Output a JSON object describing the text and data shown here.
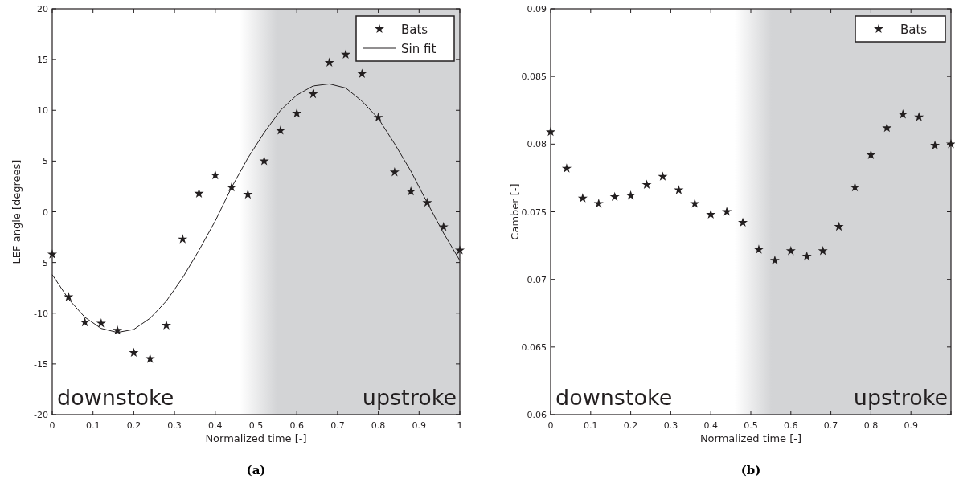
{
  "chart_data": [
    {
      "type": "scatter",
      "title": "(a)",
      "xlabel": "Normalized time [-]",
      "ylabel": "LEF angle [degrees]",
      "x": [
        0,
        0.04,
        0.08,
        0.12,
        0.16,
        0.2,
        0.24,
        0.28,
        0.32,
        0.36,
        0.4,
        0.44,
        0.48,
        0.52,
        0.56,
        0.6,
        0.64,
        0.68,
        0.72,
        0.76,
        0.8,
        0.84,
        0.88,
        0.92,
        0.96,
        1
      ],
      "series": [
        {
          "name": "Bats",
          "type": "scatter",
          "color": "#231f20",
          "marker": "star",
          "values": [
            -4.2,
            -8.4,
            -10.9,
            -11.0,
            -11.7,
            -13.9,
            -14.5,
            -11.2,
            -2.7,
            1.8,
            3.6,
            2.4,
            1.7,
            5.0,
            8.0,
            9.7,
            11.6,
            14.7,
            15.5,
            13.6,
            9.3,
            3.9,
            2.0,
            0.9,
            -1.5,
            -3.8
          ]
        },
        {
          "name": "Sin fit",
          "type": "line",
          "color": "#231f20",
          "line_style": "solid",
          "values": [
            -6.2,
            -8.6,
            -10.4,
            -11.5,
            -11.9,
            -11.6,
            -10.5,
            -8.8,
            -6.5,
            -3.8,
            -0.9,
            2.4,
            5.3,
            7.8,
            10.0,
            11.5,
            12.4,
            12.6,
            12.2,
            10.9,
            9.2,
            6.7,
            4.0,
            0.9,
            -2.1,
            -4.8
          ]
        }
      ],
      "xlim": [
        0,
        1
      ],
      "xticks": [
        0,
        0.1,
        0.2,
        0.3,
        0.4,
        0.5,
        0.6,
        0.7,
        0.8,
        0.9,
        1
      ],
      "ylim": [
        -20,
        20
      ],
      "yticks": [
        -20,
        -15,
        -10,
        -5,
        0,
        5,
        10,
        15,
        20
      ],
      "bands": [
        {
          "axis": "x",
          "from": 0.46,
          "to": 1,
          "label": "upstroke",
          "color": "#d3d4d6"
        }
      ],
      "annotations": [
        "downstoke"
      ],
      "legend": "top right",
      "grid": false
    },
    {
      "type": "scatter",
      "title": "(b)",
      "xlabel": "Normalized time [-]",
      "ylabel": "Camber [-]",
      "x": [
        0,
        0.04,
        0.08,
        0.12,
        0.16,
        0.2,
        0.24,
        0.28,
        0.32,
        0.36,
        0.4,
        0.44,
        0.48,
        0.52,
        0.56,
        0.6,
        0.64,
        0.68,
        0.72,
        0.76,
        0.8,
        0.84,
        0.88,
        0.92,
        0.96,
        1
      ],
      "series": [
        {
          "name": "Bats",
          "type": "scatter",
          "color": "#231f20",
          "marker": "star",
          "values": [
            0.0809,
            0.0782,
            0.076,
            0.0756,
            0.0761,
            0.0762,
            0.077,
            0.0776,
            0.0766,
            0.0756,
            0.0748,
            0.075,
            0.0742,
            0.0722,
            0.0714,
            0.0721,
            0.0717,
            0.0721,
            0.0739,
            0.0768,
            0.0792,
            0.0812,
            0.0822,
            0.082,
            0.0799,
            0.08
          ]
        }
      ],
      "xlim": [
        0,
        1
      ],
      "xticks": [
        0,
        0.1,
        0.2,
        0.3,
        0.4,
        0.5,
        0.6,
        0.7,
        0.8,
        0.9,
        {
          "value": 1,
          "label": null
        }
      ],
      "ylim": [
        0.06,
        0.09
      ],
      "yticks": [
        0.06,
        0.065,
        0.07,
        0.075,
        0.08,
        0.085,
        0.09
      ],
      "bands": [
        {
          "axis": "x",
          "from": 0.46,
          "to": 1,
          "label": "upstroke",
          "color": "#d3d4d6"
        }
      ],
      "annotations": [
        "downstoke"
      ],
      "legend": "top right",
      "grid": false
    }
  ]
}
